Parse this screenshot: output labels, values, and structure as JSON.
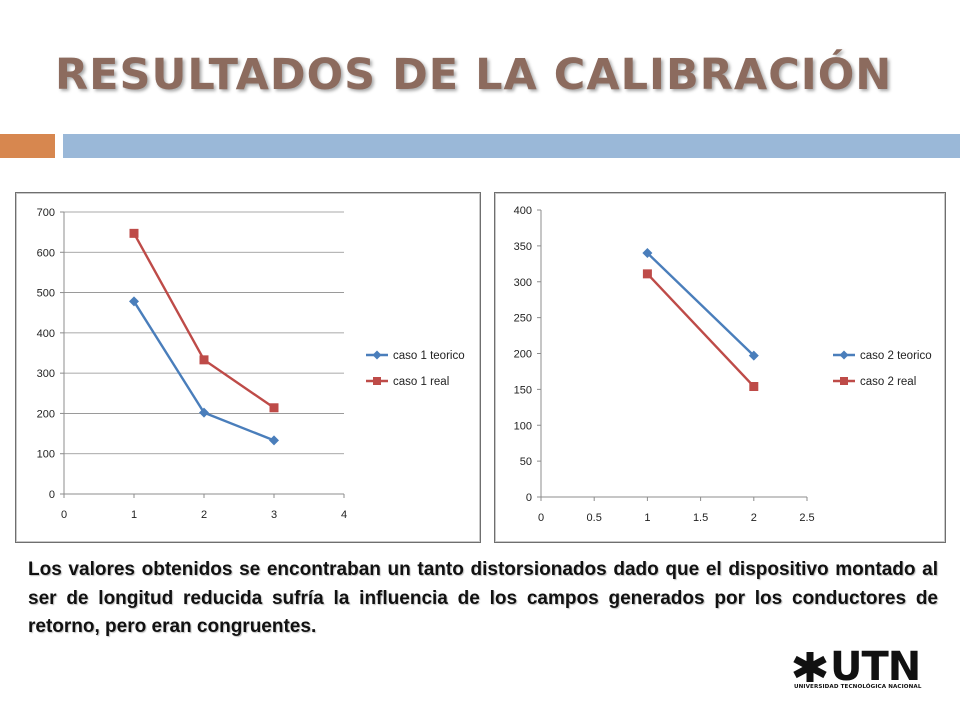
{
  "slide": {
    "title": "RESULTADOS DE LA CALIBRACIÓN",
    "body": "Los valores obtenidos se encontraban un tanto distorsionados dado que el dispositivo montado al ser de longitud reducida sufría la influencia de los campos generados por los conductores de retorno, pero eran congruentes."
  },
  "logo": {
    "main": "UTN",
    "subtitle": "UNIVERSIDAD TECNOLÓGICA NACIONAL"
  },
  "colors": {
    "title": "#8c6b5e",
    "bar_orange": "#d7874f",
    "bar_blue": "#9ab8d8",
    "series_blue": "#4a7ebb",
    "series_red": "#be4b48"
  },
  "chart_data": [
    {
      "type": "line",
      "title": "",
      "xlabel": "",
      "ylabel": "",
      "xlim": [
        0,
        4
      ],
      "ylim": [
        0,
        700
      ],
      "xticks": [
        "0",
        "1",
        "2",
        "3",
        "4"
      ],
      "yticks": [
        "0",
        "100",
        "200",
        "300",
        "400",
        "500",
        "600",
        "700"
      ],
      "grid": true,
      "legend": "right",
      "series": [
        {
          "name": "caso 1 teorico",
          "marker": "diamond",
          "color": "#4a7ebb",
          "x": [
            1,
            2,
            3
          ],
          "y": [
            478,
            202,
            133
          ]
        },
        {
          "name": "caso 1 real",
          "marker": "square",
          "color": "#be4b48",
          "x": [
            1,
            2,
            3
          ],
          "y": [
            647,
            333,
            214
          ]
        }
      ]
    },
    {
      "type": "line",
      "title": "",
      "xlabel": "",
      "ylabel": "",
      "xlim": [
        0,
        2.5
      ],
      "ylim": [
        0,
        400
      ],
      "xticks": [
        "0",
        "0.5",
        "1",
        "1.5",
        "2",
        "2.5"
      ],
      "yticks": [
        "0",
        "50",
        "100",
        "150",
        "200",
        "250",
        "300",
        "350",
        "400"
      ],
      "grid": false,
      "legend": "right",
      "series": [
        {
          "name": "caso 2 teorico",
          "marker": "diamond",
          "color": "#4a7ebb",
          "x": [
            1,
            2
          ],
          "y": [
            340,
            197
          ]
        },
        {
          "name": "caso 2 real",
          "marker": "square",
          "color": "#be4b48",
          "x": [
            1,
            2
          ],
          "y": [
            311,
            154
          ]
        }
      ]
    }
  ]
}
